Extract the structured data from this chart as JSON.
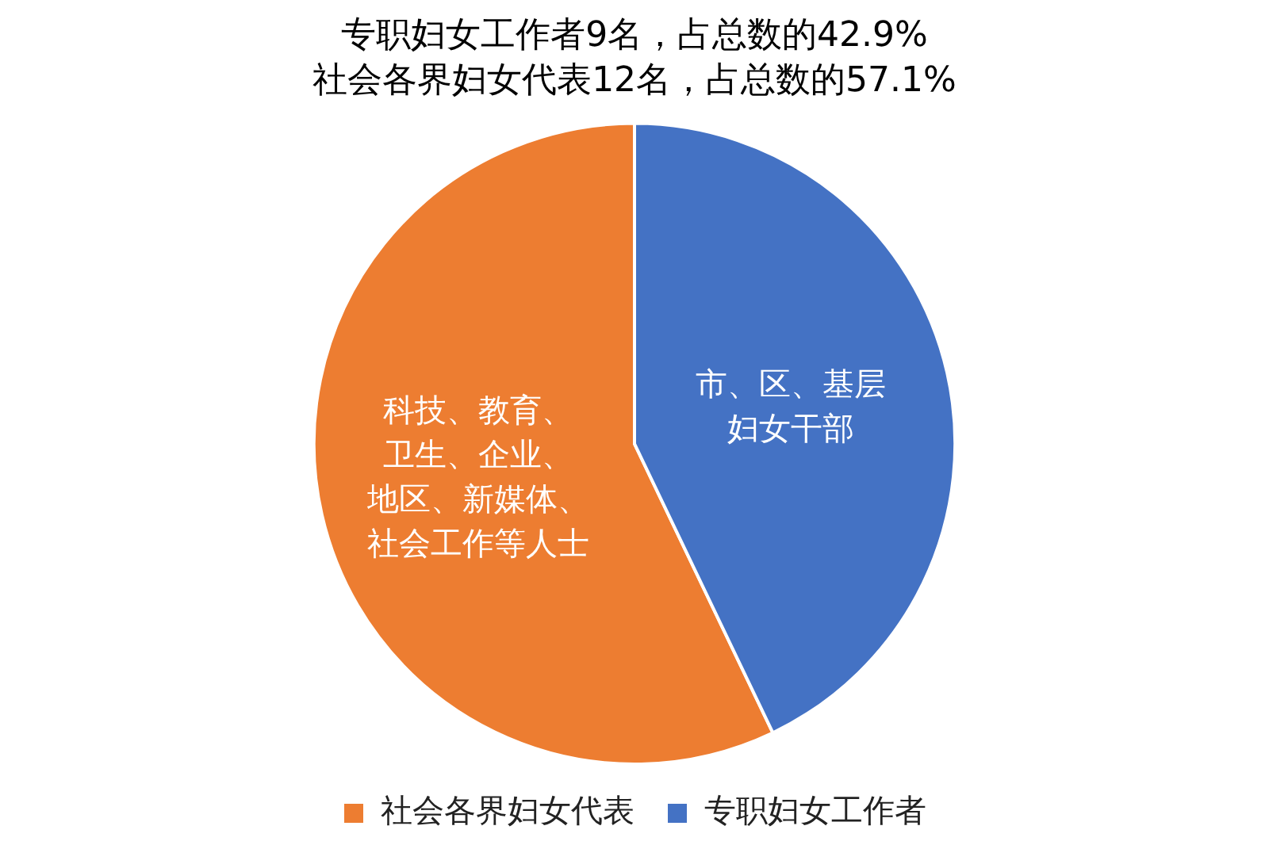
{
  "chart_data": {
    "type": "pie",
    "title": "专职妇女工作者9名，占总数的42.9%",
    "subtitle": "社会各界妇女代表12名，占总数的57.1%",
    "categories": [
      "社会各界妇女代表",
      "专职妇女工作者"
    ],
    "values": [
      57.1,
      42.9
    ],
    "colors": [
      "#ed7d31",
      "#4472c4"
    ],
    "annotations": [
      {
        "text": "科技、教育、",
        "x": "社会各界妇女代表"
      },
      {
        "text": "卫生、企业、",
        "x": "社会各界妇女代表"
      },
      {
        "text": "地区、新媒体、",
        "x": "社会各界妇女代表"
      },
      {
        "text": "社会工作等人士",
        "x": "社会各界妇女代表"
      },
      {
        "text": "市、区、基层",
        "x": "专职妇女工作者"
      },
      {
        "text": "妇女干部",
        "x": "专职妇女工作者"
      }
    ],
    "legend": "bottom"
  }
}
